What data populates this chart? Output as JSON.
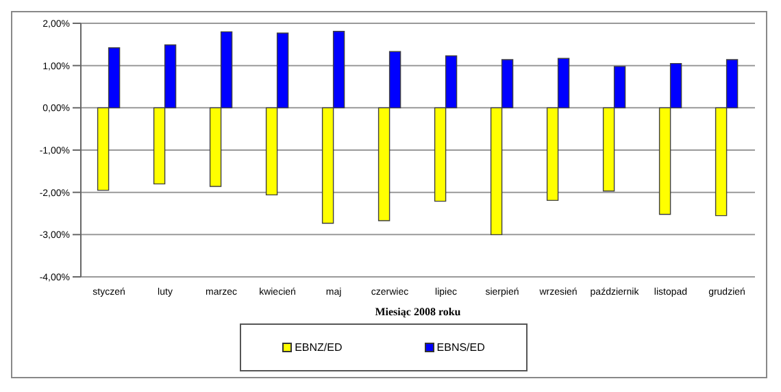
{
  "chart_data": {
    "type": "bar",
    "xlabel": "Miesiąc 2008 roku",
    "categories": [
      "styczeń",
      "luty",
      "marzec",
      "kwiecień",
      "maj",
      "czerwiec",
      "lipiec",
      "sierpień",
      "wrzesień",
      "październik",
      "listopad",
      "grudzień"
    ],
    "series": [
      {
        "name": "EBNZ/ED",
        "color": "#ffff00",
        "values": [
          -1.95,
          -1.8,
          -1.86,
          -2.06,
          -2.73,
          -2.67,
          -2.21,
          -3.0,
          -2.19,
          -1.97,
          -2.52,
          -2.55
        ]
      },
      {
        "name": "EBNS/ED",
        "color": "#0000ff",
        "values": [
          1.42,
          1.49,
          1.8,
          1.77,
          1.81,
          1.33,
          1.23,
          1.14,
          1.17,
          0.98,
          1.05,
          1.14
        ]
      }
    ],
    "ylim": [
      -4,
      2
    ],
    "yticks": [
      {
        "value": -4,
        "label": "-4,00%"
      },
      {
        "value": -3,
        "label": "-3,00%"
      },
      {
        "value": -2,
        "label": "-2,00%"
      },
      {
        "value": -1,
        "label": "-1,00%"
      },
      {
        "value": 0,
        "label": "0,00%"
      },
      {
        "value": 1,
        "label": "1,00%"
      },
      {
        "value": 2,
        "label": "2,00%"
      }
    ],
    "grid": "y",
    "legend": "bottom"
  }
}
